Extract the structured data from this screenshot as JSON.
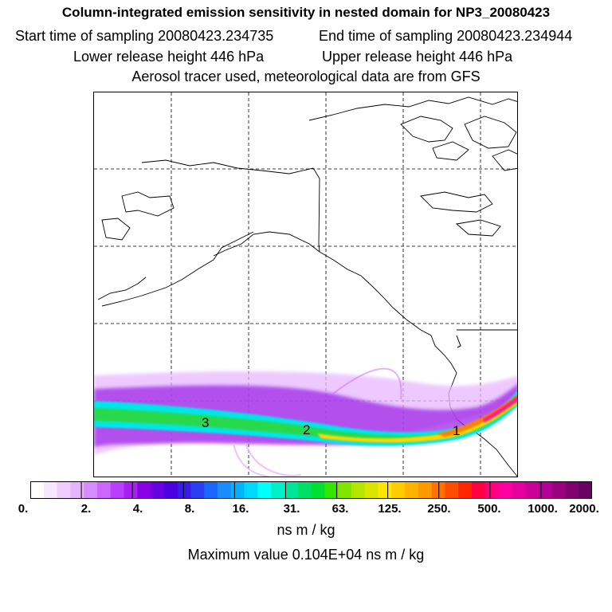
{
  "header": {
    "title": "Column-integrated emission sensitivity in nested domain for NP3_20080423",
    "start_sampling": "Start time of sampling 20080423.234735",
    "end_sampling": "End time of sampling 20080423.234944",
    "lower_release": "Lower release height  446 hPa",
    "upper_release": "Upper release height  446 hPa",
    "tracer_info": "Aerosol tracer used, meteorological data are from GFS"
  },
  "map": {
    "plume_labels": [
      "3",
      "2",
      "1"
    ],
    "plume_colors": [
      "#e8b8ff",
      "#9a1ee6",
      "#00e6e6",
      "#33d633",
      "#ffd700",
      "#ff8000",
      "#ff1493"
    ]
  },
  "colorbar": {
    "tick_labels": [
      "0.",
      "2.",
      "4.",
      "8.",
      "16.",
      "31.",
      "63.",
      "125.",
      "250.",
      "500.",
      "1000.",
      "2000."
    ],
    "colors": [
      "#ffffff",
      "#f7e6ff",
      "#efcdff",
      "#e6b4ff",
      "#d98cff",
      "#cc66ff",
      "#bb3dff",
      "#a81ff0",
      "#8a00e6",
      "#6a00e0",
      "#4a00e0",
      "#3a1ae6",
      "#2a40f0",
      "#1a66ff",
      "#1a8cff",
      "#00b3ff",
      "#00d9ff",
      "#00ffff",
      "#00f0cc",
      "#00e699",
      "#00e066",
      "#00e033",
      "#33e600",
      "#80e600",
      "#b3e600",
      "#d9e600",
      "#ffe600",
      "#ffcc00",
      "#ffb300",
      "#ff9900",
      "#ff7300",
      "#ff4d00",
      "#ff2600",
      "#ff0040",
      "#ff0080",
      "#ff00a0",
      "#e600a0",
      "#cc0099",
      "#b30099",
      "#990080",
      "#800070",
      "#6a0066"
    ],
    "units": "ns m / kg",
    "max_value_text": "Maximum value  0.104E+04 ns m / kg"
  }
}
